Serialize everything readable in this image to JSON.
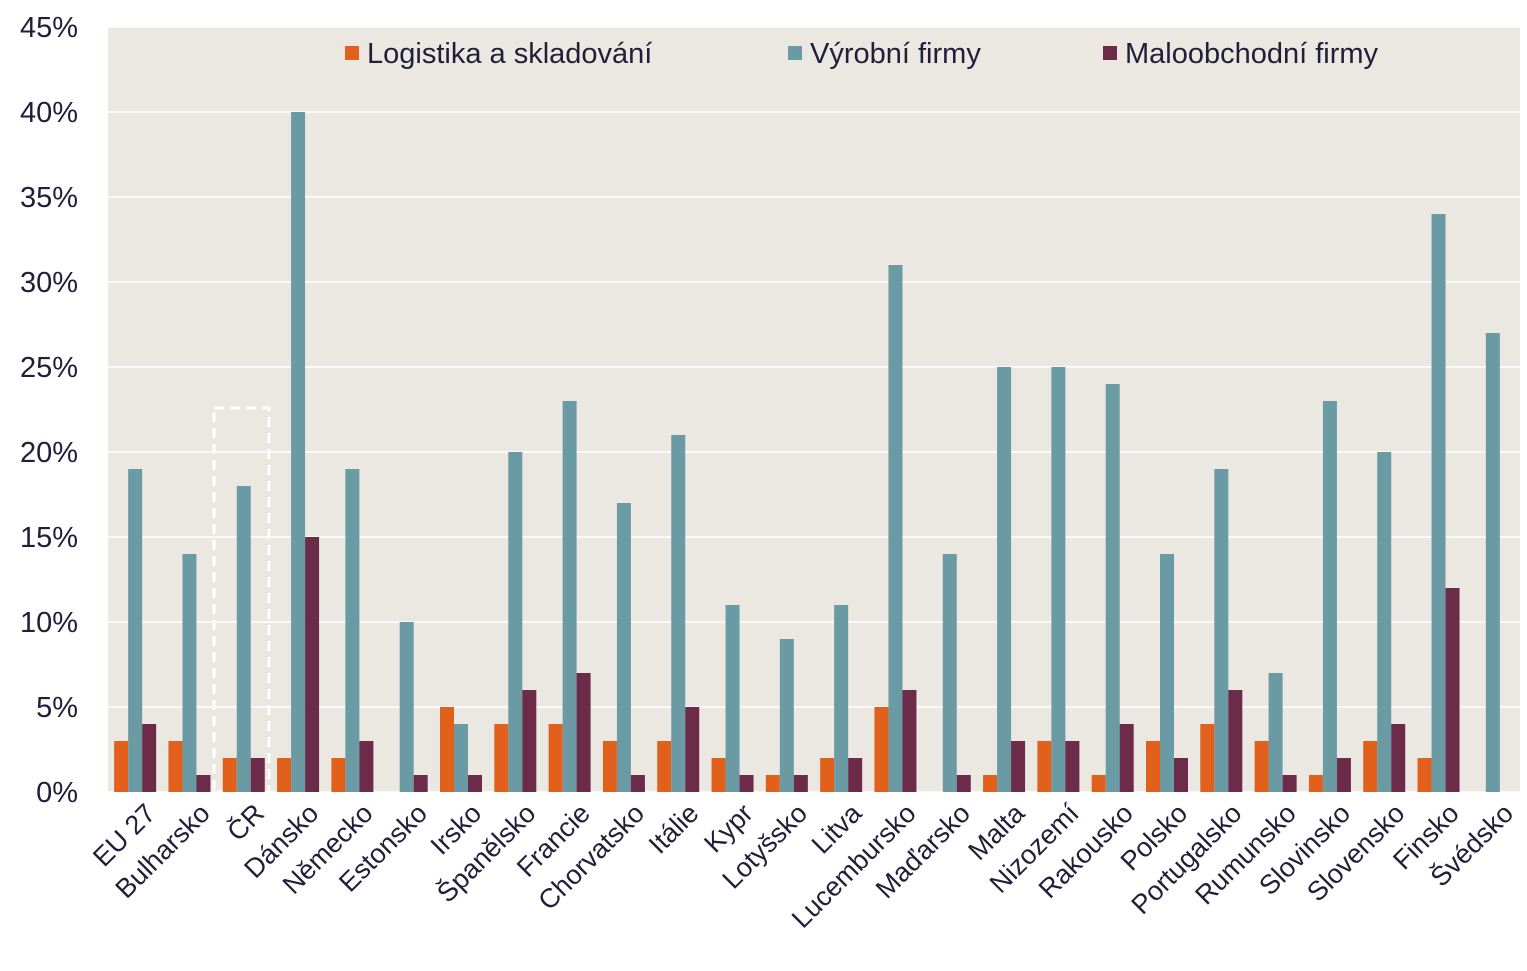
{
  "chart_data": {
    "type": "bar",
    "categories": [
      "EU 27",
      "Bulharsko",
      "ČR",
      "Dánsko",
      "Německo",
      "Estonsko",
      "Irsko",
      "Španělsko",
      "Francie",
      "Chorvatsko",
      "Itálie",
      "Kypr",
      "Lotyšsko",
      "Litva",
      "Lucembursko",
      "Maďarsko",
      "Malta",
      "Nizozemí",
      "Rakousko",
      "Polsko",
      "Portugalsko",
      "Rumunsko",
      "Slovinsko",
      "Slovensko",
      "Finsko",
      "Švédsko"
    ],
    "series": [
      {
        "name": "Logistika a skladování",
        "color": "#e0601c",
        "values": [
          3,
          3,
          2,
          2,
          2,
          0,
          5,
          4,
          4,
          3,
          3,
          2,
          1,
          2,
          5,
          0,
          1,
          3,
          1,
          3,
          4,
          3,
          1,
          3,
          2,
          0
        ]
      },
      {
        "name": "Výrobní firmy",
        "color": "#6a9ba4",
        "values": [
          19,
          14,
          18,
          40,
          19,
          10,
          4,
          20,
          23,
          17,
          21,
          11,
          9,
          11,
          31,
          14,
          25,
          25,
          24,
          14,
          19,
          7,
          23,
          20,
          34,
          27
        ]
      },
      {
        "name": "Maloobchodní firmy",
        "color": "#6d2b4a",
        "values": [
          4,
          1,
          2,
          15,
          3,
          1,
          1,
          6,
          7,
          1,
          5,
          1,
          1,
          2,
          6,
          1,
          3,
          3,
          4,
          2,
          6,
          1,
          2,
          4,
          12,
          0
        ]
      }
    ],
    "ylim": [
      0,
      45
    ],
    "yticks": [
      {
        "value": 0,
        "label": "0%"
      },
      {
        "value": 5,
        "label": "5%"
      },
      {
        "value": 10,
        "label": "10%"
      },
      {
        "value": 15,
        "label": "15%"
      },
      {
        "value": 20,
        "label": "20%"
      },
      {
        "value": 25,
        "label": "25%"
      },
      {
        "value": 30,
        "label": "30%"
      },
      {
        "value": 35,
        "label": "35%"
      },
      {
        "value": 40,
        "label": "40%"
      },
      {
        "value": 45,
        "label": "45%"
      }
    ],
    "grid": true,
    "legend": "top"
  }
}
